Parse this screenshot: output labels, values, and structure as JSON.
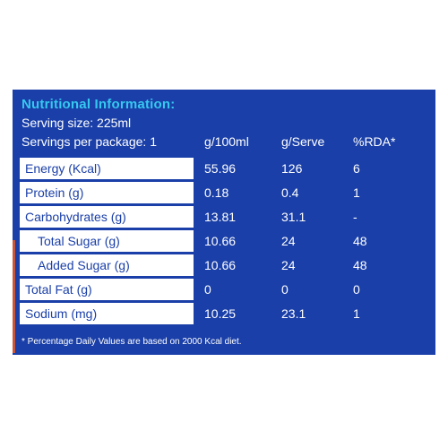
{
  "title": "Nutritional Information:",
  "serving_size": "Serving size: 225ml",
  "header": {
    "servings": "Servings per package: 1",
    "col1": "g/100ml",
    "col2": "g/Serve",
    "col3": "%RDA*"
  },
  "rows": [
    {
      "name": "Energy (Kcal)",
      "per100": "55.96",
      "perServe": "126",
      "rda": "6"
    },
    {
      "name": "Protein (g)",
      "per100": "0.18",
      "perServe": "0.4",
      "rda": "1"
    },
    {
      "name": "Carbohydrates (g)",
      "per100": "13.81",
      "perServe": "31.1",
      "rda": "-"
    },
    {
      "name": "Total Sugar (g)",
      "per100": "10.66",
      "perServe": "24",
      "rda": "48"
    },
    {
      "name": "Added Sugar (g)",
      "per100": "10.66",
      "perServe": "24",
      "rda": "48"
    },
    {
      "name": "Total Fat (g)",
      "per100": "0",
      "perServe": "0",
      "rda": "0"
    },
    {
      "name": "Sodium (mg)",
      "per100": "10.25",
      "perServe": "23.1",
      "rda": "1"
    }
  ],
  "footnote": "* Percentage Daily Values are based on 2000 Kcal diet.",
  "colors": {
    "panel": "#1a3fa8",
    "title": "#35c8f0",
    "accent": "#c8563a"
  }
}
